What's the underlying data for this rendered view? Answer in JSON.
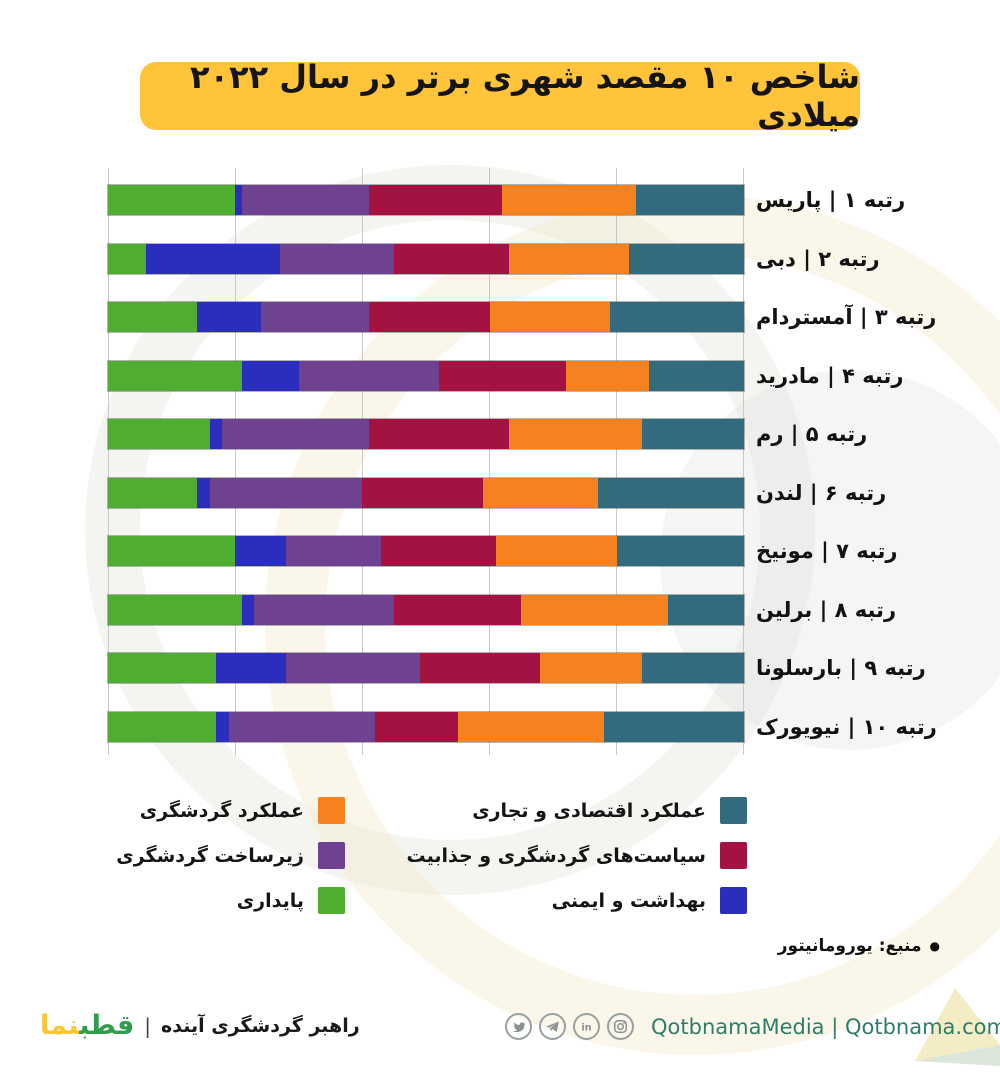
{
  "title": {
    "text": "شاخص ۱۰ مقصد شهری برتر در سال ۲۰۲۲ میلادی",
    "bg_color": "#FFC43A"
  },
  "chart_data": {
    "type": "bar",
    "stacked": true,
    "orientation": "horizontal",
    "note": "100% stacked horizontal bars, categories listed top to bottom, segments listed left to right",
    "xlim": [
      0,
      100
    ],
    "grid": true,
    "gridline_count": 6,
    "categories": [
      "رتبه ۱ | پاریس",
      "رتبه ۲ | دبی",
      "رتبه ۳ | آمستردام",
      "رتبه ۴ | مادرید",
      "رتبه ۵ | رم",
      "رتبه ۶ | لندن",
      "رتبه ۷ | مونیخ",
      "رتبه ۸ | برلین",
      "رتبه ۹ | بارسلونا",
      "رتبه ۱۰ | نیویورک"
    ],
    "series": [
      {
        "name": "پایداری",
        "color": "#4FAE32",
        "values": [
          20,
          6,
          14,
          21,
          16,
          14,
          20,
          21,
          17,
          17
        ]
      },
      {
        "name": "بهداشت و ایمنی",
        "color": "#2B2EBD",
        "values": [
          1,
          21,
          10,
          9,
          2,
          2,
          8,
          2,
          11,
          2
        ]
      },
      {
        "name": "زیرساخت گردشگری",
        "color": "#6E4291",
        "values": [
          20,
          18,
          17,
          22,
          23,
          24,
          15,
          22,
          21,
          23
        ]
      },
      {
        "name": "سیاست‌های گردشگری و جذابیت",
        "color": "#A31240",
        "values": [
          21,
          18,
          19,
          20,
          22,
          19,
          18,
          20,
          19,
          13
        ]
      },
      {
        "name": "عملکرد گردشگری",
        "color": "#F5821F",
        "values": [
          21,
          19,
          19,
          13,
          21,
          18,
          19,
          23,
          16,
          23
        ]
      },
      {
        "name": "عملکرد اقتصادی و تجاری",
        "color": "#336B7E",
        "values": [
          17,
          18,
          21,
          15,
          16,
          23,
          20,
          12,
          16,
          22
        ]
      }
    ]
  },
  "legend": {
    "columns": [
      {
        "items": [
          {
            "label": "عملکرد گردشگری",
            "color": "#F5821F"
          },
          {
            "label": "زیرساخت گردشگری",
            "color": "#6E4291"
          },
          {
            "label": "پایداری",
            "color": "#4FAE32"
          }
        ]
      },
      {
        "items": [
          {
            "label": "عملکرد اقتصادی و تجاری",
            "color": "#336B7E"
          },
          {
            "label": "سیاست‌های گردشگری و جذابیت",
            "color": "#A31240"
          },
          {
            "label": "بهداشت و ایمنی",
            "color": "#2B2EBD"
          }
        ]
      }
    ]
  },
  "source": {
    "bullet": "●",
    "text": "منبع: یورومانیتور"
  },
  "footer": {
    "tagline": "راهبر گردشگری آینده",
    "separator": "|",
    "logo": {
      "part_right": "قطب",
      "part_left": "نما",
      "green": "#2F9E4B",
      "yellow": "#FFC42E"
    },
    "social": {
      "icons": [
        "twitter-icon",
        "telegram-icon",
        "linkedin-icon",
        "instagram-icon"
      ],
      "handle": "QotbnamaMedia",
      "separator": "|",
      "website": "Qotbnama.com",
      "text_color": "#2F7D68"
    }
  },
  "colors": {
    "gridline": "#c9c9c9",
    "bar_outline": "rgba(70,70,70,0.40)",
    "title_bg": "#FFC43A",
    "text": "#151515"
  }
}
